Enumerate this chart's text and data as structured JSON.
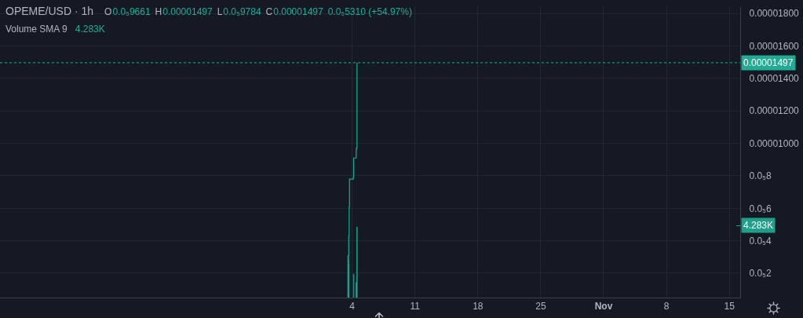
{
  "chart_data": {
    "type": "step",
    "title": "OPEME/USD · 1h",
    "subtitle": "Volume SMA 9",
    "annotations": [
      "O",
      "0.0₅9661",
      "H",
      "0.00001497",
      "L",
      "0.0₅9784",
      "C",
      "0.00001497",
      "0.0₅5310 (+54.97%)",
      "4.283K"
    ],
    "series": [
      {
        "color": "#22ab94",
        "x": [
          "--10-03T13:00",
          "--10-03T14:00",
          "--10-03T15:00",
          "--10-03T16:00",
          "--10-03T17:00",
          "--10-04T03:00",
          "--10-04T04:00",
          "--10-04T11:00",
          "--10-04T13:00"
        ],
        "values": [
          6e-07,
          3.1e-06,
          4.3e-06,
          6.1e-06,
          7.8e-06,
          7.9e-06,
          9.1e-06,
          9.7e-06,
          1.497e-05
        ]
      },
      {
        "type": "bar",
        "axis": "y2",
        "color": "#1f9e8a",
        "x": [
          "--10-03T13:00",
          "--10-03T14:00",
          "--10-03T15:00",
          "--10-04T04:00",
          "--10-04T11:00",
          "--10-04T13:00"
        ],
        "values": [
          2500,
          2300,
          2000,
          1400,
          900,
          4200
        ]
      }
    ],
    "xlim": [
      "--08-25T19:00",
      "--11-16T05:00"
    ],
    "xticks": [
      {
        "value": "--10-04",
        "label": "4"
      },
      {
        "value": "--10-11",
        "label": "11"
      },
      {
        "value": "--10-18",
        "label": "18"
      },
      {
        "value": "--10-25",
        "label": "25"
      },
      {
        "value": "--11-01",
        "label": "Nov"
      },
      {
        "value": "--11-08",
        "label": "8"
      },
      {
        "value": "--11-15",
        "label": "15"
      }
    ],
    "ylim": [
      5e-07,
      1.84e-05
    ],
    "yticks": [
      {
        "value": 2e-06,
        "label": "0.0₅2"
      },
      {
        "value": 4e-06,
        "label": "0.0₅4"
      },
      {
        "value": 6e-06,
        "label": "0.0₅6"
      },
      {
        "value": 8e-06,
        "label": "0.0₅8"
      },
      {
        "value": 1e-05,
        "label": "0.00001000"
      },
      {
        "value": 1.2e-05,
        "label": "0.00001200"
      },
      {
        "value": 1.4e-05,
        "label": "0.00001400"
      },
      {
        "value": 1.6e-05,
        "label": "0.00001600"
      },
      {
        "value": 1.8e-05,
        "label": "0.00001800"
      }
    ],
    "y2lim": [
      0,
      17300
    ],
    "y2ticks": [
      {
        "value": 4283,
        "label": "4.283K"
      }
    ],
    "ref_lines": [
      {
        "axis": "y",
        "value": 1.497e-05,
        "label": "0.00001497",
        "color": "#22ab94",
        "line_style": "dotted"
      }
    ],
    "grid": true
  }
}
